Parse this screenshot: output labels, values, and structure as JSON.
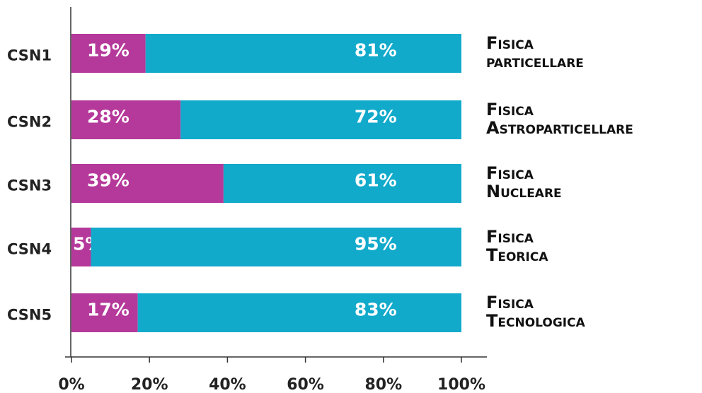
{
  "chart_data": {
    "type": "stacked_barh",
    "categories": [
      "CSN1",
      "CSN2",
      "CSN3",
      "CSN4",
      "CSN5"
    ],
    "right_labels": [
      [
        "Fisica",
        "particellare"
      ],
      [
        "Fisica",
        "Astroparticellare"
      ],
      [
        "Fisica",
        "Nucleare"
      ],
      [
        "Fisica",
        "Teorica"
      ],
      [
        "Fisica",
        "Tecnologica"
      ]
    ],
    "series": [
      {
        "color": "#b5399a",
        "values": [
          19,
          28,
          39,
          5,
          17
        ],
        "value_labels": [
          "19%",
          "28%",
          "39%",
          "5%",
          "17%"
        ]
      },
      {
        "color": "#12aacb",
        "values": [
          81,
          72,
          61,
          95,
          83
        ],
        "value_labels": [
          "81%",
          "72%",
          "61%",
          "95%",
          "83%"
        ]
      }
    ],
    "xlim": [
      0,
      100
    ],
    "xticks": [
      {
        "value": 0,
        "label": "0%"
      },
      {
        "value": 20,
        "label": "20%"
      },
      {
        "value": 40,
        "label": "40%"
      },
      {
        "value": 60,
        "label": "60%"
      },
      {
        "value": 80,
        "label": "80%"
      },
      {
        "value": 100,
        "label": "100%"
      }
    ]
  }
}
